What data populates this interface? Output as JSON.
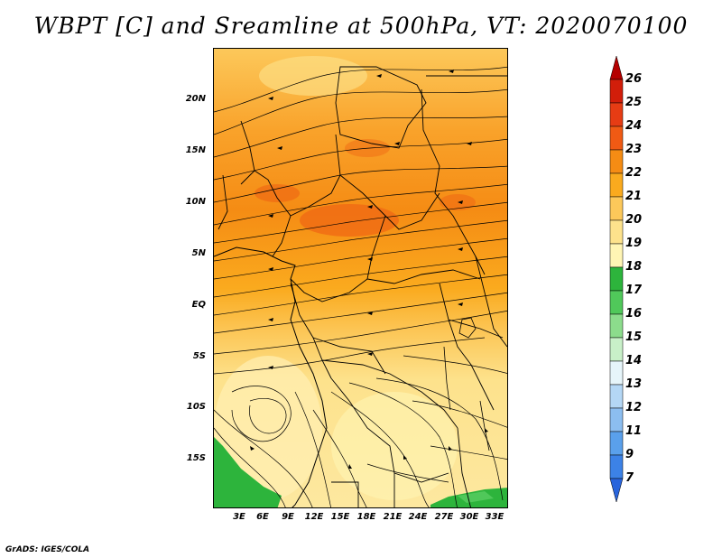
{
  "title": "WBPT [C] and Sreamline at 500hPa, VT: 2020070100",
  "credit": "GrADS: IGES/COLA",
  "map": {
    "lat_labels": [
      "20N",
      "15N",
      "10N",
      "5N",
      "EQ",
      "5S",
      "10S",
      "15S"
    ],
    "lon_labels": [
      "3E",
      "6E",
      "9E",
      "12E",
      "15E",
      "18E",
      "21E",
      "24E",
      "27E",
      "30E",
      "33E"
    ],
    "variable": "Wet-bulb potential temperature and streamlines"
  },
  "colorbar": {
    "labels": [
      "26",
      "25",
      "24",
      "23",
      "22",
      "21",
      "20",
      "19",
      "18",
      "17",
      "16",
      "15",
      "14",
      "13",
      "12",
      "11",
      "9",
      "7"
    ],
    "colors": [
      "#b40000",
      "#d21e0a",
      "#e63c14",
      "#f05a14",
      "#f58c14",
      "#faaa1e",
      "#fcc85a",
      "#fde28c",
      "#fff5b4",
      "#2db43c",
      "#50c85a",
      "#8cdc8c",
      "#c8f0c8",
      "#e6f5fa",
      "#b4d7f5",
      "#8cbef0",
      "#5aa0eb",
      "#3c82e6",
      "#2864dc"
    ]
  }
}
